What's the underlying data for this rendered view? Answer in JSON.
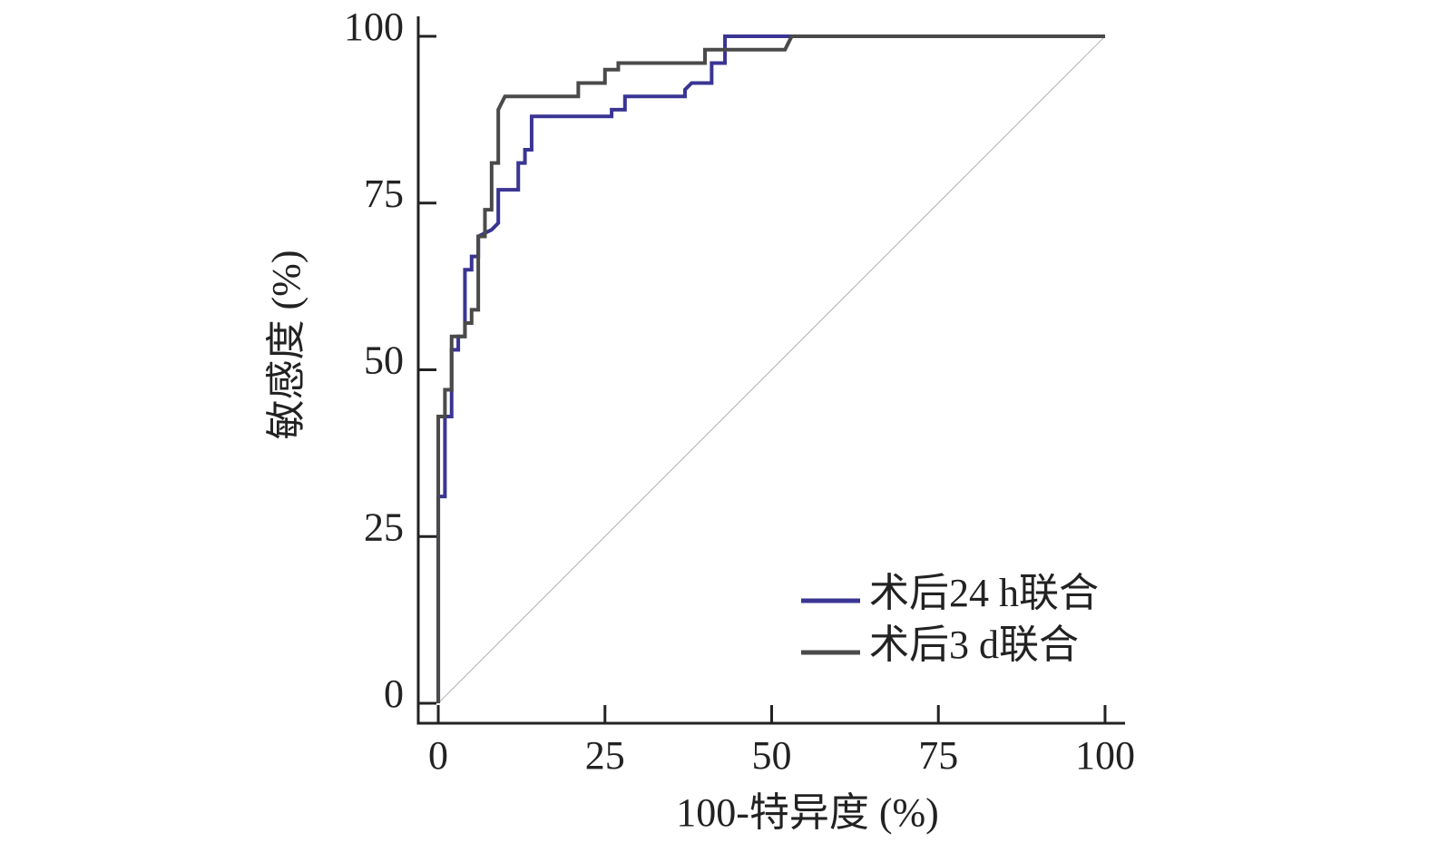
{
  "chart_data": {
    "type": "line",
    "xlabel": "100-特异度 (%)",
    "ylabel": "敏感度 (%)",
    "xlim": [
      -3,
      103
    ],
    "ylim": [
      -3,
      103
    ],
    "xticks": [
      0,
      25,
      50,
      75,
      100
    ],
    "yticks": [
      0,
      25,
      50,
      75,
      100
    ],
    "legend": "lower right",
    "reference_line": {
      "x": [
        0,
        100
      ],
      "y": [
        0,
        100
      ],
      "color": "#b0b0b0"
    },
    "series": [
      {
        "name": "术后24 h联合",
        "color": "#3a3593",
        "x": [
          0,
          0,
          1,
          1,
          2,
          2,
          3,
          3,
          4,
          4,
          5,
          5,
          6,
          6,
          8,
          9,
          9,
          12,
          12,
          13,
          13,
          14,
          14,
          26,
          26,
          28,
          28,
          37,
          37,
          38,
          41,
          41,
          43,
          43,
          100
        ],
        "values": [
          0,
          31,
          31,
          43,
          43,
          53,
          53,
          55,
          55,
          65,
          65,
          67,
          67,
          70,
          71,
          72,
          77,
          77,
          81,
          81,
          83,
          83,
          88,
          88,
          89,
          89,
          91,
          91,
          92,
          93,
          93,
          96,
          96,
          100,
          100
        ]
      },
      {
        "name": "术后3 d联合",
        "color": "#4a4a4a",
        "x": [
          0,
          0,
          1,
          1,
          2,
          2,
          4,
          4,
          5,
          5,
          6,
          6,
          7,
          7,
          8,
          8,
          9,
          9,
          10,
          21,
          21,
          25,
          25,
          27,
          27,
          40,
          40,
          52,
          53,
          100
        ],
        "values": [
          0,
          43,
          43,
          47,
          47,
          55,
          55,
          57,
          57,
          59,
          59,
          70,
          70,
          74,
          74,
          81,
          81,
          89,
          91,
          91,
          93,
          93,
          95,
          95,
          96,
          96,
          98,
          98,
          100,
          100
        ]
      }
    ]
  }
}
